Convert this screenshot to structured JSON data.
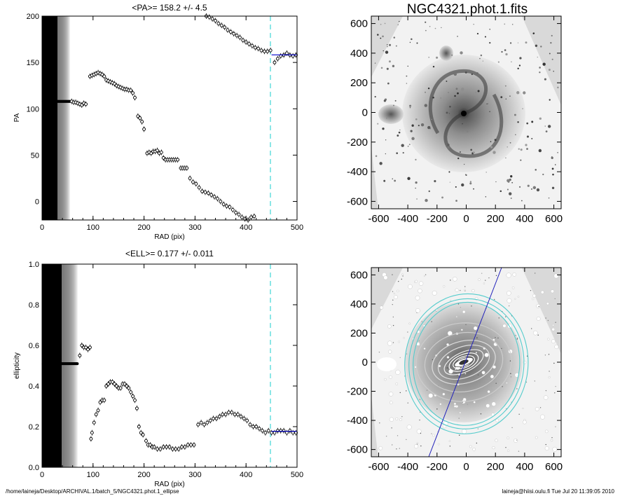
{
  "colors": {
    "axis": "#000000",
    "mean_line": "#0000cc",
    "radius_line": "#66dddd",
    "ellipse": "#55cccc",
    "pa_line": "#2222bb",
    "sky": "#d9d9d9"
  },
  "footer": {
    "path": "/home/laineja/Desktop/ARCHIVAL.1/batch_5/NGC4321.phot.1_ellipse",
    "stamp": "laineja@hiisi.oulu.fi  Tue Jul 20 11:39:05 2010"
  },
  "images": {
    "title": "NGC4321.phot.1.fits",
    "xticks": [
      -600,
      -400,
      -200,
      0,
      200,
      400,
      600
    ],
    "yticks": [
      600,
      400,
      200,
      0,
      -200,
      -400,
      -600
    ]
  },
  "chart_data": [
    {
      "type": "scatter",
      "title": "<PA>= 158.2 +/-   4.5",
      "xlabel": "RAD (pix)",
      "ylabel": "PA",
      "xlim": [
        0,
        500
      ],
      "ylim": [
        -20,
        200
      ],
      "xticks": [
        0,
        100,
        200,
        300,
        400,
        500
      ],
      "yticks": [
        0,
        50,
        100,
        150,
        200
      ],
      "mean": 158.2,
      "mean_err": 4.5,
      "mean_range": [
        450,
        500
      ],
      "marker_radius": 450,
      "inner_cluster": {
        "x_range": [
          2,
          55
        ],
        "y": 108
      },
      "points": [
        [
          58,
          108
        ],
        [
          62,
          107
        ],
        [
          66,
          107
        ],
        [
          70,
          106
        ],
        [
          74,
          105
        ],
        [
          78,
          104
        ],
        [
          82,
          106
        ],
        [
          86,
          105
        ],
        [
          94,
          135
        ],
        [
          98,
          136
        ],
        [
          102,
          137
        ],
        [
          106,
          138
        ],
        [
          110,
          139
        ],
        [
          114,
          138
        ],
        [
          118,
          137
        ],
        [
          122,
          135
        ],
        [
          126,
          131
        ],
        [
          130,
          130
        ],
        [
          134,
          129
        ],
        [
          138,
          128
        ],
        [
          142,
          127
        ],
        [
          146,
          125
        ],
        [
          150,
          124
        ],
        [
          154,
          123
        ],
        [
          158,
          122
        ],
        [
          162,
          121
        ],
        [
          166,
          121
        ],
        [
          170,
          120
        ],
        [
          174,
          120
        ],
        [
          178,
          117
        ],
        [
          182,
          112
        ],
        [
          188,
          92
        ],
        [
          192,
          90
        ],
        [
          196,
          86
        ],
        [
          200,
          78
        ],
        [
          206,
          52
        ],
        [
          210,
          53
        ],
        [
          214,
          52
        ],
        [
          218,
          54
        ],
        [
          222,
          54
        ],
        [
          226,
          55
        ],
        [
          230,
          52
        ],
        [
          234,
          53
        ],
        [
          238,
          47
        ],
        [
          242,
          45
        ],
        [
          246,
          45
        ],
        [
          250,
          45
        ],
        [
          254,
          45
        ],
        [
          258,
          45
        ],
        [
          262,
          45
        ],
        [
          266,
          45
        ],
        [
          272,
          36
        ],
        [
          276,
          36
        ],
        [
          280,
          36
        ],
        [
          284,
          36
        ],
        [
          290,
          25
        ],
        [
          296,
          21
        ],
        [
          302,
          19
        ],
        [
          308,
          15
        ],
        [
          314,
          11
        ],
        [
          320,
          10
        ],
        [
          326,
          9
        ],
        [
          332,
          7
        ],
        [
          338,
          5
        ],
        [
          344,
          3
        ],
        [
          350,
          0
        ],
        [
          356,
          -3
        ],
        [
          362,
          -5
        ],
        [
          368,
          -6
        ],
        [
          374,
          -9
        ],
        [
          380,
          -12
        ],
        [
          386,
          -14
        ],
        [
          392,
          -17
        ],
        [
          398,
          -19
        ],
        [
          404,
          -20
        ],
        [
          410,
          -17
        ],
        [
          416,
          -16
        ],
        [
          322,
          200
        ],
        [
          328,
          199
        ],
        [
          334,
          197
        ],
        [
          340,
          195
        ],
        [
          346,
          192
        ],
        [
          352,
          190
        ],
        [
          358,
          188
        ],
        [
          364,
          185
        ],
        [
          370,
          183
        ],
        [
          376,
          181
        ],
        [
          382,
          179
        ],
        [
          388,
          177
        ],
        [
          394,
          174
        ],
        [
          400,
          172
        ],
        [
          406,
          170
        ],
        [
          412,
          168
        ],
        [
          418,
          166
        ],
        [
          424,
          165
        ],
        [
          430,
          163
        ],
        [
          436,
          162
        ],
        [
          442,
          162
        ],
        [
          448,
          163
        ],
        [
          456,
          150
        ],
        [
          462,
          154
        ],
        [
          468,
          157
        ],
        [
          474,
          158
        ],
        [
          480,
          160
        ],
        [
          486,
          158
        ],
        [
          492,
          157
        ],
        [
          498,
          158
        ]
      ]
    },
    {
      "type": "scatter",
      "title": "<ELL>= 0.177 +/-  0.011",
      "xlabel": "RAD (pix)",
      "ylabel": "ellipticity",
      "xlim": [
        0,
        500
      ],
      "ylim": [
        0.0,
        1.0
      ],
      "xticks": [
        0,
        100,
        200,
        300,
        400,
        500
      ],
      "yticks": [
        "0.0",
        "0.2",
        "0.4",
        "0.6",
        "0.8",
        "1.0"
      ],
      "mean": 0.177,
      "mean_err": 0.011,
      "mean_range": [
        450,
        500
      ],
      "marker_radius": 450,
      "inner_cluster": {
        "x_range": [
          2,
          70
        ],
        "y": 0.51
      },
      "points": [
        [
          74,
          0.55
        ],
        [
          78,
          0.6
        ],
        [
          82,
          0.59
        ],
        [
          86,
          0.59
        ],
        [
          90,
          0.58
        ],
        [
          94,
          0.59
        ],
        [
          96,
          0.14
        ],
        [
          98,
          0.17
        ],
        [
          102,
          0.22
        ],
        [
          106,
          0.26
        ],
        [
          110,
          0.28
        ],
        [
          114,
          0.32
        ],
        [
          118,
          0.33
        ],
        [
          122,
          0.33
        ],
        [
          126,
          0.4
        ],
        [
          130,
          0.41
        ],
        [
          134,
          0.42
        ],
        [
          138,
          0.42
        ],
        [
          142,
          0.41
        ],
        [
          146,
          0.4
        ],
        [
          150,
          0.39
        ],
        [
          154,
          0.39
        ],
        [
          158,
          0.41
        ],
        [
          162,
          0.41
        ],
        [
          166,
          0.4
        ],
        [
          170,
          0.39
        ],
        [
          174,
          0.37
        ],
        [
          178,
          0.35
        ],
        [
          182,
          0.33
        ],
        [
          186,
          0.29
        ],
        [
          190,
          0.2
        ],
        [
          194,
          0.17
        ],
        [
          198,
          0.16
        ],
        [
          204,
          0.13
        ],
        [
          208,
          0.11
        ],
        [
          212,
          0.11
        ],
        [
          216,
          0.1
        ],
        [
          220,
          0.1
        ],
        [
          226,
          0.09
        ],
        [
          232,
          0.09
        ],
        [
          238,
          0.1
        ],
        [
          244,
          0.1
        ],
        [
          250,
          0.1
        ],
        [
          256,
          0.09
        ],
        [
          262,
          0.09
        ],
        [
          268,
          0.09
        ],
        [
          274,
          0.1
        ],
        [
          280,
          0.1
        ],
        [
          286,
          0.11
        ],
        [
          292,
          0.11
        ],
        [
          298,
          0.11
        ],
        [
          306,
          0.21
        ],
        [
          312,
          0.22
        ],
        [
          318,
          0.21
        ],
        [
          324,
          0.22
        ],
        [
          330,
          0.23
        ],
        [
          336,
          0.24
        ],
        [
          342,
          0.24
        ],
        [
          348,
          0.25
        ],
        [
          354,
          0.26
        ],
        [
          360,
          0.26
        ],
        [
          366,
          0.27
        ],
        [
          372,
          0.27
        ],
        [
          378,
          0.26
        ],
        [
          384,
          0.26
        ],
        [
          390,
          0.25
        ],
        [
          396,
          0.24
        ],
        [
          402,
          0.23
        ],
        [
          408,
          0.21
        ],
        [
          414,
          0.2
        ],
        [
          420,
          0.2
        ],
        [
          426,
          0.19
        ],
        [
          432,
          0.18
        ],
        [
          438,
          0.17
        ],
        [
          444,
          0.18
        ],
        [
          450,
          0.17
        ],
        [
          456,
          0.17
        ],
        [
          462,
          0.18
        ],
        [
          468,
          0.18
        ],
        [
          474,
          0.18
        ],
        [
          480,
          0.17
        ],
        [
          486,
          0.18
        ],
        [
          492,
          0.17
        ],
        [
          498,
          0.17
        ]
      ]
    }
  ]
}
